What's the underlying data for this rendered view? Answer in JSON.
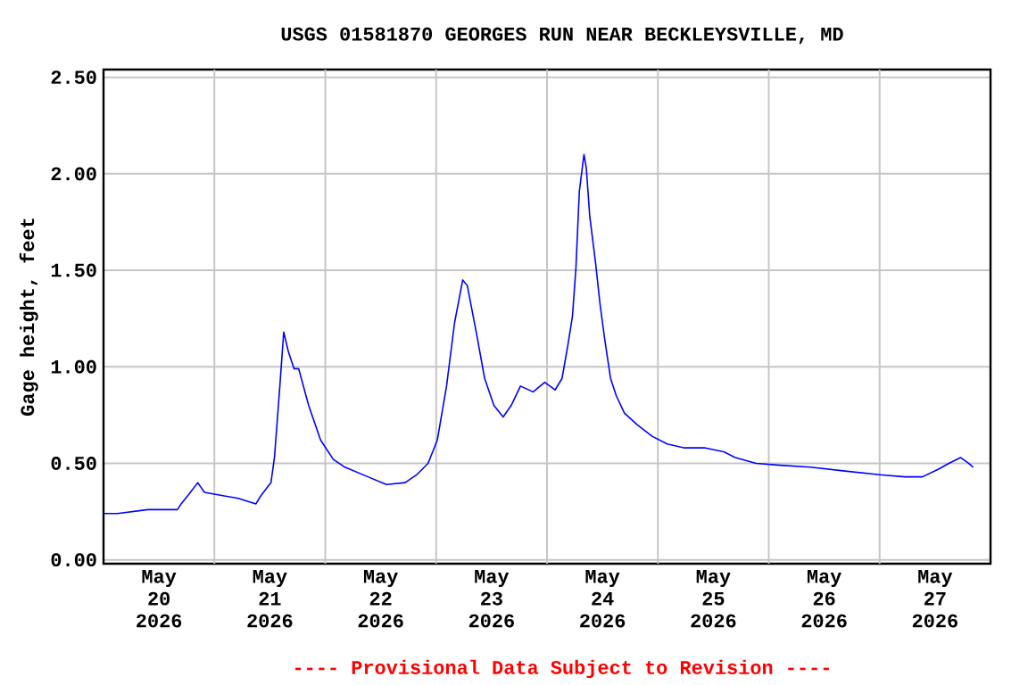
{
  "chart_data": {
    "type": "line",
    "title": "USGS 01581870 GEORGES RUN NEAR BECKLEYSVILLE, MD",
    "ylabel": "Gage height, feet",
    "annotations": [
      "---- Provisional Data Subject to Revision ----"
    ],
    "series": [
      {
        "color": "#0000ff",
        "x": [
          "2026-05-20T00:00",
          "2026-05-20T03:00",
          "2026-05-20T09:36",
          "2026-05-20T16:00",
          "2026-05-20T16:48",
          "2026-05-20T18:30",
          "2026-05-20T20:24",
          "2026-05-20T21:50",
          "2026-05-21T02:24",
          "2026-05-21T05:00",
          "2026-05-21T09:00",
          "2026-05-21T10:00",
          "2026-05-21T12:15",
          "2026-05-21T13:00",
          "2026-05-21T14:10",
          "2026-05-21T15:00",
          "2026-05-21T16:00",
          "2026-05-21T17:15",
          "2026-05-21T18:15",
          "2026-05-21T20:24",
          "2026-05-21T23:00",
          "2026-05-22T01:45",
          "2026-05-22T04:15",
          "2026-05-22T09:15",
          "2026-05-22T13:15",
          "2026-05-22T17:17",
          "2026-05-22T19:45",
          "2026-05-22T22:15",
          "2026-05-23T00:15",
          "2026-05-23T02:15",
          "2026-05-23T04:00",
          "2026-05-23T05:45",
          "2026-05-23T06:45",
          "2026-05-23T08:45",
          "2026-05-23T10:30",
          "2026-05-23T12:30",
          "2026-05-23T14:30",
          "2026-05-23T16:15",
          "2026-05-23T18:15",
          "2026-05-23T21:00",
          "2026-05-23T23:30",
          "2026-05-24T01:45",
          "2026-05-24T03:15",
          "2026-05-24T04:30",
          "2026-05-24T05:30",
          "2026-05-24T06:15",
          "2026-05-24T07:00",
          "2026-05-24T08:00",
          "2026-05-24T08:30",
          "2026-05-24T09:15",
          "2026-05-24T10:30",
          "2026-05-24T11:30",
          "2026-05-24T12:30",
          "2026-05-24T13:45",
          "2026-05-24T15:00",
          "2026-05-24T16:45",
          "2026-05-24T19:30",
          "2026-05-24T22:45",
          "2026-05-25T02:00",
          "2026-05-25T05:45",
          "2026-05-25T10:15",
          "2026-05-25T14:15",
          "2026-05-25T16:45",
          "2026-05-25T21:15",
          "2026-05-26T02:30",
          "2026-05-26T09:00",
          "2026-05-26T16:30",
          "2026-05-27T00:30",
          "2026-05-27T05:30",
          "2026-05-27T09:15",
          "2026-05-27T12:45",
          "2026-05-27T15:00",
          "2026-05-27T17:30",
          "2026-05-27T19:15",
          "2026-05-27T20:15"
        ],
        "values": [
          0.24,
          0.24,
          0.26,
          0.26,
          0.29,
          0.34,
          0.4,
          0.35,
          0.33,
          0.32,
          0.29,
          0.33,
          0.4,
          0.53,
          0.9,
          1.18,
          1.08,
          0.99,
          0.99,
          0.8,
          0.62,
          0.52,
          0.48,
          0.43,
          0.39,
          0.4,
          0.44,
          0.5,
          0.62,
          0.9,
          1.23,
          1.45,
          1.42,
          1.17,
          0.94,
          0.8,
          0.74,
          0.8,
          0.9,
          0.87,
          0.92,
          0.88,
          0.94,
          1.11,
          1.26,
          1.51,
          1.91,
          2.1,
          2.03,
          1.78,
          1.54,
          1.32,
          1.14,
          0.94,
          0.85,
          0.76,
          0.7,
          0.64,
          0.6,
          0.58,
          0.58,
          0.56,
          0.53,
          0.5,
          0.49,
          0.48,
          0.46,
          0.44,
          0.43,
          0.43,
          0.47,
          0.5,
          0.53,
          0.5,
          0.48
        ]
      }
    ],
    "xlim": [
      "2026-05-20T00:00",
      "2026-05-28T00:00"
    ],
    "xticks": [
      {
        "value": "2026-05-20T12:00",
        "label": "May 20 2026"
      },
      {
        "value": "2026-05-21T00:00",
        "label": null
      },
      {
        "value": "2026-05-21T12:00",
        "label": "May 21 2026"
      },
      {
        "value": "2026-05-22T00:00",
        "label": null
      },
      {
        "value": "2026-05-22T12:00",
        "label": "May 22 2026"
      },
      {
        "value": "2026-05-23T00:00",
        "label": null
      },
      {
        "value": "2026-05-23T12:00",
        "label": "May 23 2026"
      },
      {
        "value": "2026-05-24T00:00",
        "label": null
      },
      {
        "value": "2026-05-24T12:00",
        "label": "May 24 2026"
      },
      {
        "value": "2026-05-25T00:00",
        "label": null
      },
      {
        "value": "2026-05-25T12:00",
        "label": "May 25 2026"
      },
      {
        "value": "2026-05-26T00:00",
        "label": null
      },
      {
        "value": "2026-05-26T12:00",
        "label": "May 26 2026"
      },
      {
        "value": "2026-05-27T00:00",
        "label": null
      },
      {
        "value": "2026-05-27T12:00",
        "label": "May 27 2026"
      }
    ],
    "ylim": [
      -0.02,
      2.54
    ],
    "yticks": [
      {
        "value": 0,
        "label": "0.00"
      },
      {
        "value": 0.5,
        "label": "0.50"
      },
      {
        "value": 1,
        "label": "1.00"
      },
      {
        "value": 1.5,
        "label": "1.50"
      },
      {
        "value": 2,
        "label": "2.00"
      },
      {
        "value": 2.5,
        "label": "2.50"
      }
    ],
    "grid": true,
    "marker": "none",
    "line_style": "solid"
  }
}
